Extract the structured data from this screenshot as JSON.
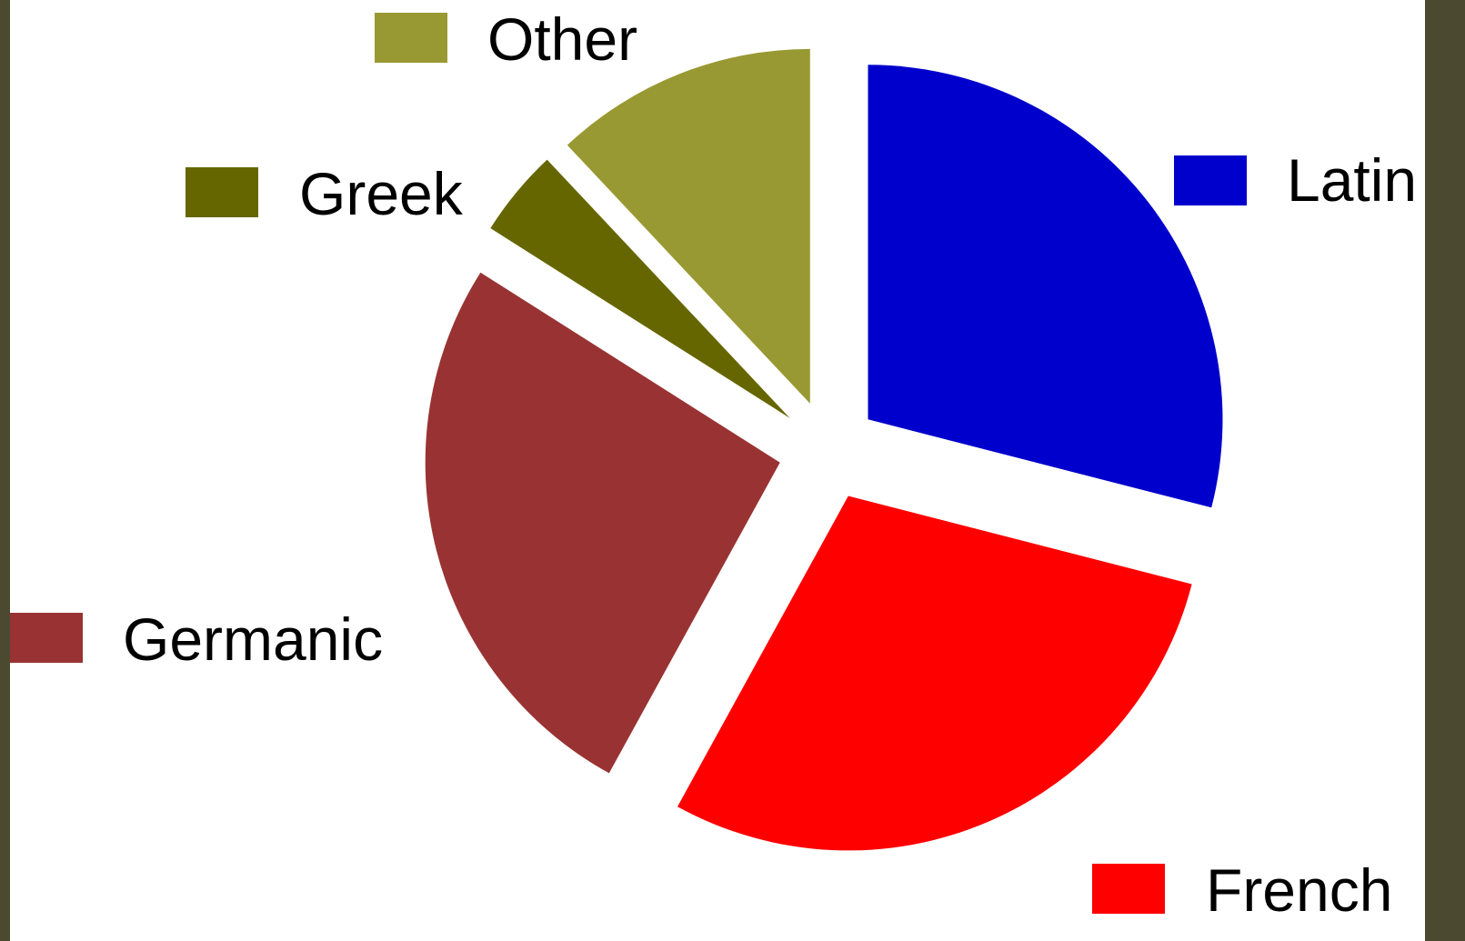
{
  "chart_data": {
    "type": "pie",
    "title": "",
    "categories": [
      "Latin",
      "French",
      "Germanic",
      "Greek",
      "Other"
    ],
    "values": [
      29,
      29,
      26,
      4,
      12
    ],
    "series": [
      {
        "slices": [
          {
            "label": "Latin",
            "value": 29,
            "color": "#0000cc"
          },
          {
            "label": "French",
            "value": 29,
            "color": "#ff0000"
          },
          {
            "label": "Germanic",
            "value": 26,
            "color": "#993333"
          },
          {
            "label": "Greek",
            "value": 4,
            "color": "#666600"
          },
          {
            "label": "Other",
            "value": 12,
            "color": "#999933"
          }
        ]
      }
    ],
    "exploded": true,
    "start": "12 o'clock, clockwise",
    "legend": "labels placed next to each slice"
  },
  "colors": {
    "frame": "#4b4a30",
    "panel": "#ffffff"
  }
}
